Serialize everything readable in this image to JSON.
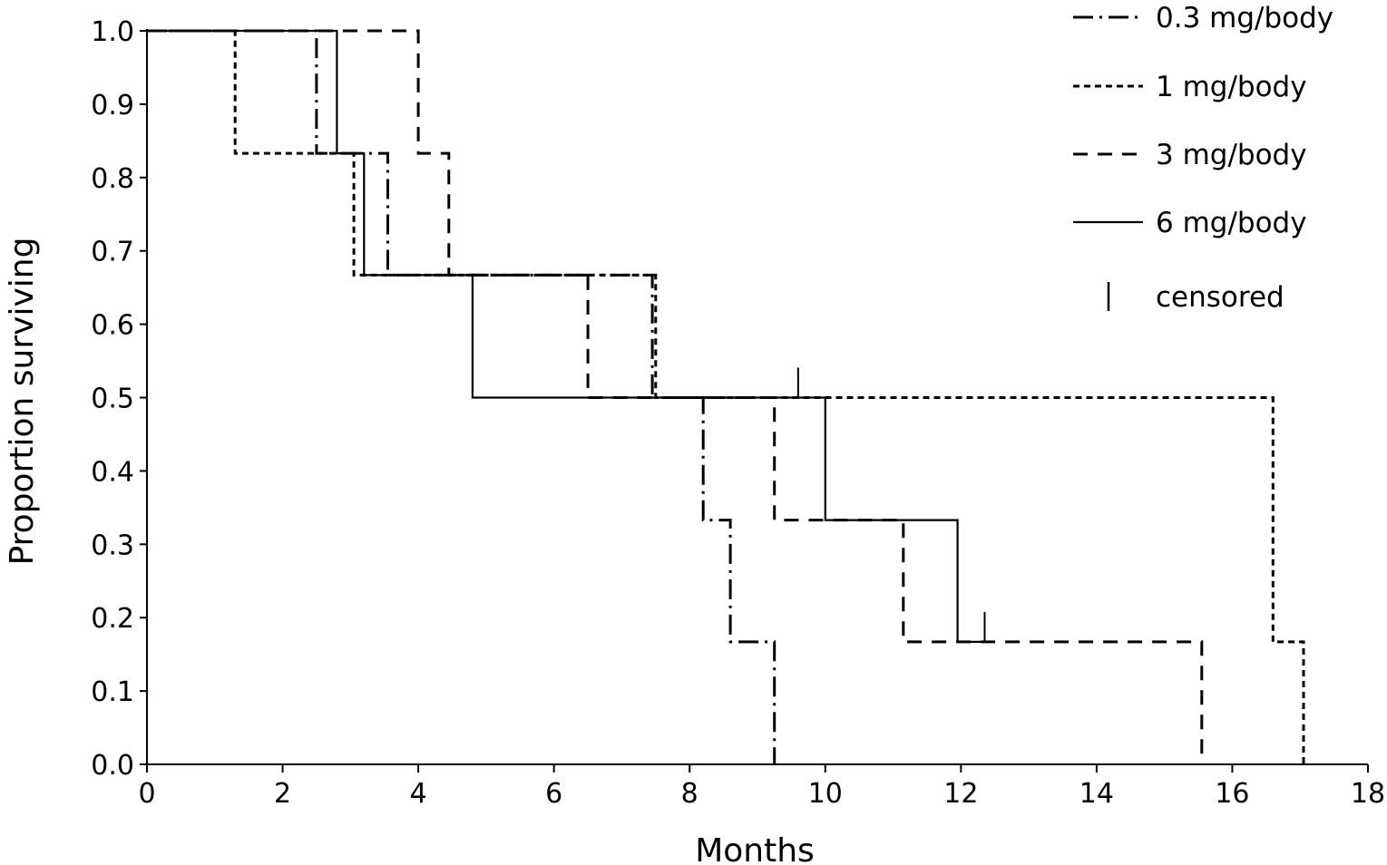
{
  "chart_data": {
    "type": "line",
    "title": "",
    "xlabel": "Months",
    "ylabel": "Proportion surviving",
    "xlim": [
      0,
      18
    ],
    "ylim": [
      0.0,
      1.0
    ],
    "x_ticks": [
      0,
      2,
      4,
      6,
      8,
      10,
      12,
      14,
      16,
      18
    ],
    "y_ticks": [
      0.0,
      0.1,
      0.2,
      0.3,
      0.4,
      0.5,
      0.6,
      0.7,
      0.8,
      0.9,
      1.0
    ],
    "x_tick_labels": [
      "0",
      "2",
      "4",
      "6",
      "8",
      "10",
      "12",
      "14",
      "16",
      "18"
    ],
    "y_tick_labels": [
      "0.0",
      "0.1",
      "0.2",
      "0.3",
      "0.4",
      "0.5",
      "0.6",
      "0.7",
      "0.8",
      "0.9",
      "1.0"
    ],
    "grid": false,
    "step": true,
    "legend_position": "top-right",
    "series": [
      {
        "name": "0.3 mg/body",
        "style": "dashdot",
        "x": [
          0,
          2.5,
          3.55,
          7.45,
          8.2,
          8.6,
          9.25
        ],
        "y": [
          1.0,
          0.833,
          0.667,
          0.5,
          0.333,
          0.167,
          0.0
        ],
        "censored": []
      },
      {
        "name": "1 mg/body",
        "style": "dotted",
        "x": [
          0,
          3.05,
          7.5,
          16.6,
          17.05
        ],
        "y": [
          0.833,
          0.667,
          0.5,
          0.167,
          0.0
        ],
        "start_y": 1.0,
        "start_drop_x": 1.3,
        "censored": []
      },
      {
        "name": "3 mg/body",
        "style": "dashed",
        "x": [
          0,
          4.0,
          4.45,
          6.5,
          9.25,
          11.15,
          15.55
        ],
        "y": [
          1.0,
          0.833,
          0.667,
          0.5,
          0.333,
          0.167,
          0.0
        ],
        "censored": []
      },
      {
        "name": "6 mg/body",
        "style": "solid",
        "x": [
          0,
          2.8,
          3.2,
          4.8,
          10.0,
          11.95
        ],
        "y": [
          1.0,
          0.833,
          0.667,
          0.5,
          0.333,
          0.167
        ],
        "end_x": 12.4,
        "censored": [
          {
            "x": 9.6,
            "y": 0.5
          },
          {
            "x": 12.35,
            "y": 0.167
          }
        ]
      }
    ],
    "legend": [
      {
        "label": "0.3 mg/body",
        "style": "dashdot"
      },
      {
        "label": "1 mg/body",
        "style": "dotted"
      },
      {
        "label": "3 mg/body",
        "style": "dashed"
      },
      {
        "label": "6 mg/body",
        "style": "solid"
      },
      {
        "label": "censored",
        "style": "censor-mark"
      }
    ]
  }
}
